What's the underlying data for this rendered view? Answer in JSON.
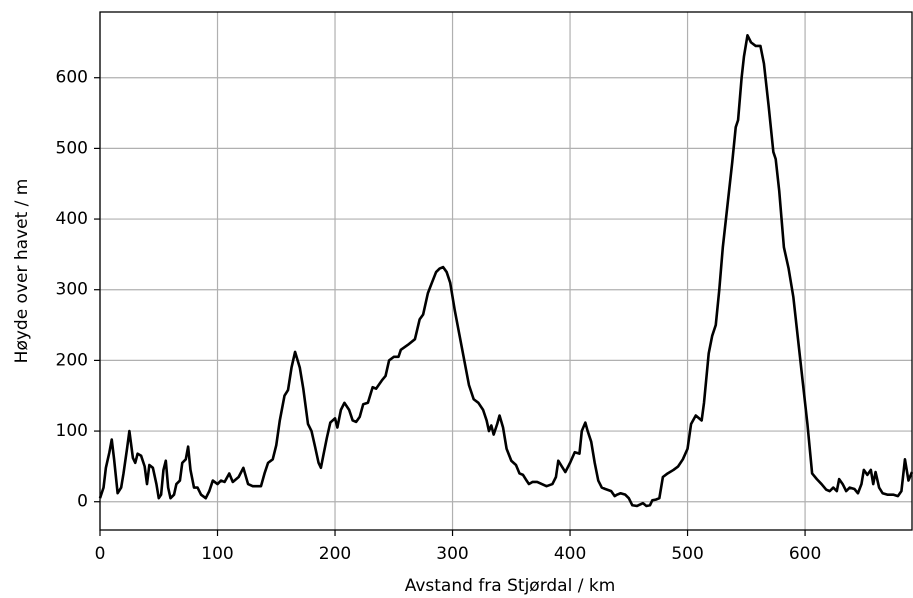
{
  "chart_data": {
    "type": "line",
    "x_label": "Avstand fra Stjørdal / km",
    "y_label": "Høyde over havet / m",
    "color": "#000000",
    "grid": true,
    "xlim": [
      0,
      691
    ],
    "ylim": [
      -40,
      693
    ],
    "xticks": [
      0,
      100,
      200,
      300,
      400,
      500,
      600
    ],
    "yticks": [
      0,
      100,
      200,
      300,
      400,
      500,
      600
    ],
    "x": [
      0,
      3,
      5,
      8,
      10,
      12,
      15,
      18,
      20,
      23,
      25,
      28,
      30,
      32,
      35,
      38,
      40,
      42,
      45,
      48,
      50,
      52,
      54,
      56,
      58,
      60,
      63,
      65,
      68,
      70,
      73,
      75,
      77,
      80,
      83,
      86,
      90,
      93,
      96,
      100,
      103,
      106,
      110,
      113,
      118,
      122,
      126,
      130,
      137,
      140,
      143,
      147,
      150,
      153,
      157,
      160,
      163,
      166,
      170,
      173,
      177,
      180,
      183,
      186,
      188,
      190,
      193,
      196,
      200,
      202,
      205,
      208,
      212,
      215,
      218,
      221,
      224,
      228,
      232,
      235,
      240,
      243,
      246,
      250,
      254,
      256,
      262,
      268,
      272,
      275,
      279,
      282,
      286,
      289,
      292,
      295,
      298,
      302,
      306,
      310,
      314,
      318,
      322,
      326,
      329,
      331,
      333,
      335,
      338,
      340,
      343,
      346,
      350,
      354,
      357,
      360,
      363,
      365,
      368,
      372,
      376,
      380,
      385,
      388,
      390,
      393,
      396,
      400,
      404,
      408,
      410,
      413,
      415,
      418,
      421,
      424,
      427,
      430,
      435,
      438,
      440,
      443,
      447,
      450,
      453,
      457,
      462,
      465,
      468,
      470,
      473,
      476,
      479,
      483,
      488,
      492,
      496,
      500,
      503,
      507,
      512,
      514,
      518,
      521,
      524,
      527,
      530,
      534,
      538,
      541,
      543,
      546,
      548,
      551,
      554,
      558,
      562,
      565,
      569,
      573,
      575,
      578,
      582,
      586,
      590,
      594,
      598,
      602,
      606,
      610,
      614,
      618,
      621,
      624,
      627,
      629,
      632,
      635,
      638,
      642,
      645,
      648,
      650,
      653,
      656,
      658,
      660,
      663,
      666,
      670,
      675,
      679,
      682,
      685,
      688,
      690,
      691
    ],
    "values": [
      5,
      20,
      48,
      70,
      88,
      60,
      12,
      20,
      40,
      75,
      100,
      62,
      55,
      68,
      65,
      50,
      25,
      52,
      48,
      25,
      5,
      10,
      45,
      58,
      20,
      5,
      10,
      25,
      30,
      55,
      60,
      78,
      45,
      20,
      20,
      10,
      5,
      15,
      30,
      25,
      30,
      28,
      40,
      28,
      35,
      48,
      25,
      22,
      22,
      40,
      55,
      60,
      80,
      115,
      150,
      158,
      190,
      212,
      190,
      160,
      110,
      100,
      78,
      55,
      48,
      65,
      90,
      112,
      118,
      105,
      130,
      140,
      130,
      115,
      113,
      120,
      138,
      140,
      162,
      160,
      172,
      178,
      200,
      205,
      205,
      215,
      222,
      230,
      258,
      265,
      295,
      308,
      325,
      330,
      332,
      325,
      310,
      270,
      235,
      200,
      165,
      145,
      140,
      130,
      115,
      100,
      108,
      95,
      110,
      122,
      105,
      75,
      58,
      52,
      40,
      38,
      30,
      25,
      28,
      28,
      25,
      22,
      25,
      35,
      58,
      50,
      42,
      55,
      70,
      68,
      100,
      112,
      100,
      85,
      55,
      30,
      20,
      18,
      15,
      8,
      10,
      12,
      10,
      5,
      -5,
      -6,
      -2,
      -6,
      -5,
      2,
      3,
      5,
      35,
      40,
      45,
      50,
      60,
      75,
      110,
      122,
      115,
      140,
      210,
      235,
      250,
      300,
      360,
      420,
      480,
      530,
      540,
      600,
      630,
      660,
      650,
      645,
      645,
      620,
      560,
      495,
      485,
      440,
      360,
      330,
      290,
      230,
      170,
      110,
      40,
      32,
      25,
      17,
      15,
      20,
      15,
      32,
      25,
      15,
      20,
      18,
      12,
      25,
      45,
      38,
      45,
      25,
      42,
      20,
      12,
      10,
      10,
      8,
      15,
      60,
      30,
      38,
      42
    ]
  }
}
